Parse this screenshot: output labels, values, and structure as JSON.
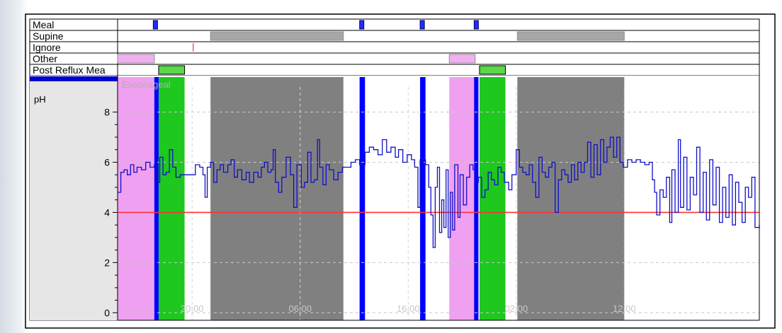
{
  "chart_data": {
    "type": "line",
    "ylabel": "pH",
    "channel_label": "Esophageal",
    "ylim": [
      -0.3,
      9.0
    ],
    "yticks": [
      0,
      2,
      4,
      6,
      8
    ],
    "reflux_threshold": 4,
    "x_unit": "hours elapsed",
    "xlim": [
      0,
      59.4
    ],
    "xticks": [
      {
        "x": 6.9,
        "label": "20:00"
      },
      {
        "x": 16.9,
        "label": "06:00"
      },
      {
        "x": 26.9,
        "label": "16:00"
      },
      {
        "x": 36.9,
        "label": "02:00"
      },
      {
        "x": 46.9,
        "label": "12:00"
      }
    ],
    "tracks": [
      {
        "label": "Meal",
        "type": "marker",
        "color": "#1f2fff",
        "events": [
          3.5,
          22.6,
          28.2,
          33.2
        ]
      },
      {
        "label": "Supine",
        "type": "span",
        "color": "#a6a6a6",
        "events": [
          [
            8.6,
            20.9
          ],
          [
            37.0,
            46.9
          ]
        ]
      },
      {
        "label": "Ignore",
        "type": "marker",
        "color": "#e08aa0",
        "events": [
          7.0
        ]
      },
      {
        "label": "Other",
        "type": "span",
        "color": "#f2b0f2",
        "events": [
          [
            0.0,
            3.4
          ],
          [
            30.7,
            33.1
          ]
        ]
      },
      {
        "label": "Post Reflux Mea",
        "type": "span",
        "color": "#5ad84a",
        "events": [
          [
            3.8,
            6.2
          ],
          [
            33.5,
            35.9
          ]
        ]
      }
    ],
    "overlays": [
      {
        "type": "other",
        "color": "#f0a0f0",
        "start": 0.0,
        "end": 3.4
      },
      {
        "type": "post-reflux",
        "color": "#1ec81e",
        "start": 3.8,
        "end": 6.2
      },
      {
        "type": "supine",
        "color": "#808080",
        "start": 8.6,
        "end": 20.9
      },
      {
        "type": "other",
        "color": "#f0a0f0",
        "start": 30.7,
        "end": 33.1
      },
      {
        "type": "post-reflux",
        "color": "#1ec81e",
        "start": 33.5,
        "end": 35.9
      },
      {
        "type": "supine",
        "color": "#808080",
        "start": 37.0,
        "end": 46.9
      },
      {
        "type": "meal",
        "color": "#0000ff",
        "start": 3.4,
        "end": 3.8
      },
      {
        "type": "meal",
        "color": "#0000ff",
        "start": 22.4,
        "end": 22.9
      },
      {
        "type": "meal",
        "color": "#0000ff",
        "start": 28.0,
        "end": 28.5
      },
      {
        "type": "meal",
        "color": "#0000ff",
        "start": 33.0,
        "end": 33.4
      }
    ],
    "series": [
      {
        "color": "#1010c8",
        "points": [
          [
            0.0,
            4.8
          ],
          [
            0.3,
            5.6
          ],
          [
            0.6,
            5.7
          ],
          [
            0.9,
            5.5
          ],
          [
            1.2,
            5.9
          ],
          [
            1.5,
            5.6
          ],
          [
            1.8,
            5.8
          ],
          [
            2.2,
            5.7
          ],
          [
            2.6,
            6.0
          ],
          [
            3.0,
            5.8
          ],
          [
            3.4,
            5.9
          ],
          [
            3.6,
            5.2
          ],
          [
            3.9,
            6.2
          ],
          [
            4.2,
            5.5
          ],
          [
            4.5,
            5.6
          ],
          [
            4.8,
            6.5
          ],
          [
            5.1,
            5.8
          ],
          [
            5.4,
            5.4
          ],
          [
            5.8,
            5.5
          ],
          [
            6.2,
            5.5
          ],
          [
            7.2,
            5.9
          ],
          [
            7.6,
            5.8
          ],
          [
            7.9,
            5.5
          ],
          [
            8.1,
            4.6
          ],
          [
            8.3,
            5.8
          ],
          [
            8.6,
            6.0
          ],
          [
            8.9,
            5.2
          ],
          [
            9.2,
            5.7
          ],
          [
            9.5,
            5.9
          ],
          [
            9.8,
            5.6
          ],
          [
            10.2,
            5.9
          ],
          [
            10.5,
            6.1
          ],
          [
            10.8,
            5.4
          ],
          [
            11.1,
            5.7
          ],
          [
            11.5,
            5.3
          ],
          [
            11.9,
            5.6
          ],
          [
            12.2,
            5.2
          ],
          [
            12.6,
            5.6
          ],
          [
            13.0,
            5.4
          ],
          [
            13.3,
            5.8
          ],
          [
            13.6,
            6.0
          ],
          [
            13.9,
            5.6
          ],
          [
            14.2,
            5.7
          ],
          [
            14.4,
            6.5
          ],
          [
            14.6,
            5.2
          ],
          [
            14.9,
            4.8
          ],
          [
            15.2,
            5.4
          ],
          [
            15.6,
            6.2
          ],
          [
            16.0,
            5.5
          ],
          [
            16.3,
            4.2
          ],
          [
            16.6,
            5.9
          ],
          [
            17.0,
            5.0
          ],
          [
            17.3,
            5.2
          ],
          [
            17.6,
            6.4
          ],
          [
            17.9,
            5.2
          ],
          [
            18.2,
            5.3
          ],
          [
            18.5,
            6.9
          ],
          [
            18.7,
            5.8
          ],
          [
            19.0,
            5.1
          ],
          [
            19.3,
            5.9
          ],
          [
            19.6,
            5.7
          ],
          [
            20.0,
            5.3
          ],
          [
            20.4,
            5.6
          ],
          [
            20.8,
            5.8
          ],
          [
            21.2,
            5.8
          ],
          [
            21.6,
            6.0
          ],
          [
            22.0,
            6.1
          ],
          [
            22.4,
            5.9
          ],
          [
            22.9,
            6.4
          ],
          [
            23.3,
            6.6
          ],
          [
            23.7,
            6.5
          ],
          [
            24.1,
            6.3
          ],
          [
            24.5,
            6.9
          ],
          [
            24.9,
            6.4
          ],
          [
            25.3,
            6.6
          ],
          [
            25.7,
            6.2
          ],
          [
            26.0,
            6.5
          ],
          [
            26.4,
            6.0
          ],
          [
            26.8,
            6.3
          ],
          [
            27.2,
            6.1
          ],
          [
            27.5,
            5.8
          ],
          [
            27.8,
            4.2
          ],
          [
            28.0,
            6.1
          ],
          [
            28.5,
            5.9
          ],
          [
            28.8,
            5.0
          ],
          [
            29.0,
            3.9
          ],
          [
            29.2,
            2.6
          ],
          [
            29.4,
            5.0
          ],
          [
            29.6,
            5.8
          ],
          [
            29.8,
            3.2
          ],
          [
            30.0,
            4.5
          ],
          [
            30.2,
            3.4
          ],
          [
            30.4,
            5.7
          ],
          [
            30.6,
            3.0
          ],
          [
            30.8,
            4.8
          ],
          [
            31.0,
            3.3
          ],
          [
            31.2,
            5.9
          ],
          [
            31.5,
            3.8
          ],
          [
            31.7,
            5.5
          ],
          [
            32.0,
            4.3
          ],
          [
            32.3,
            5.4
          ],
          [
            32.6,
            5.9
          ],
          [
            32.9,
            5.7
          ],
          [
            33.1,
            5.2
          ],
          [
            33.4,
            5.4
          ],
          [
            33.7,
            4.6
          ],
          [
            34.0,
            4.9
          ],
          [
            34.3,
            5.6
          ],
          [
            34.6,
            5.3
          ],
          [
            34.9,
            5.1
          ],
          [
            35.2,
            5.8
          ],
          [
            35.5,
            5.6
          ],
          [
            35.8,
            5.2
          ],
          [
            36.2,
            4.9
          ],
          [
            36.5,
            5.5
          ],
          [
            36.9,
            6.5
          ],
          [
            37.2,
            5.8
          ],
          [
            37.5,
            5.6
          ],
          [
            37.8,
            5.5
          ],
          [
            38.1,
            5.9
          ],
          [
            38.4,
            5.2
          ],
          [
            38.7,
            4.6
          ],
          [
            39.0,
            6.2
          ],
          [
            39.3,
            5.6
          ],
          [
            39.6,
            5.4
          ],
          [
            39.9,
            5.8
          ],
          [
            40.2,
            6.0
          ],
          [
            40.5,
            4.0
          ],
          [
            40.8,
            5.3
          ],
          [
            41.1,
            5.7
          ],
          [
            41.4,
            5.5
          ],
          [
            41.7,
            5.2
          ],
          [
            42.0,
            5.9
          ],
          [
            42.3,
            5.3
          ],
          [
            42.6,
            6.0
          ],
          [
            42.9,
            5.6
          ],
          [
            43.2,
            6.0
          ],
          [
            43.5,
            6.8
          ],
          [
            43.8,
            5.4
          ],
          [
            44.1,
            6.7
          ],
          [
            44.4,
            5.5
          ],
          [
            44.7,
            6.9
          ],
          [
            45.0,
            6.0
          ],
          [
            45.3,
            6.6
          ],
          [
            45.6,
            7.0
          ],
          [
            45.9,
            6.2
          ],
          [
            46.2,
            7.0
          ],
          [
            46.5,
            6.0
          ],
          [
            46.8,
            5.8
          ],
          [
            47.2,
            6.1
          ],
          [
            47.6,
            6.0
          ],
          [
            48.0,
            6.1
          ],
          [
            48.4,
            6.0
          ],
          [
            48.8,
            5.9
          ],
          [
            49.2,
            6.0
          ],
          [
            49.5,
            5.3
          ],
          [
            49.7,
            4.8
          ],
          [
            49.9,
            3.9
          ],
          [
            50.2,
            4.9
          ],
          [
            50.5,
            4.6
          ],
          [
            50.8,
            5.4
          ],
          [
            51.1,
            3.6
          ],
          [
            51.3,
            5.7
          ],
          [
            51.6,
            4.0
          ],
          [
            51.9,
            6.9
          ],
          [
            52.1,
            4.2
          ],
          [
            52.4,
            6.2
          ],
          [
            52.7,
            4.1
          ],
          [
            53.0,
            5.4
          ],
          [
            53.3,
            4.7
          ],
          [
            53.6,
            6.6
          ],
          [
            53.9,
            4.0
          ],
          [
            54.2,
            5.6
          ],
          [
            54.5,
            3.7
          ],
          [
            54.8,
            6.1
          ],
          [
            55.1,
            4.3
          ],
          [
            55.4,
            5.8
          ],
          [
            55.7,
            3.6
          ],
          [
            56.0,
            5.0
          ],
          [
            56.3,
            3.8
          ],
          [
            56.6,
            5.5
          ],
          [
            56.9,
            3.5
          ],
          [
            57.2,
            5.2
          ],
          [
            57.5,
            4.4
          ],
          [
            57.8,
            3.6
          ],
          [
            58.1,
            5.0
          ],
          [
            58.4,
            4.6
          ],
          [
            58.7,
            5.4
          ],
          [
            59.0,
            3.4
          ],
          [
            59.4,
            3.5
          ]
        ]
      }
    ]
  }
}
